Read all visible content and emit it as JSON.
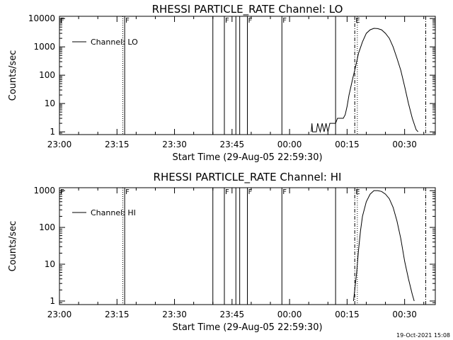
{
  "chart_data": [
    {
      "type": "line",
      "title": "RHESSI PARTICLE_RATE Channel: LO",
      "xlabel": "Start Time (29-Aug-05 22:59:30)",
      "ylabel": "Counts/sec",
      "xlim": [
        "23:00",
        "00:38"
      ],
      "ylim": [
        0.8,
        12000
      ],
      "yscale": "log",
      "grid": false,
      "legend": "top-left",
      "x_ticks": [
        "23:00",
        "23:15",
        "23:30",
        "23:45",
        "00:00",
        "00:15",
        "00:30"
      ],
      "y_ticks": [
        "1",
        "10",
        "100",
        "1000",
        "10000"
      ],
      "y_tick_values": [
        1,
        10,
        100,
        1000,
        10000
      ],
      "series": [
        {
          "name": "Channel: LO",
          "x": [
            "23:00:30",
            "00:05:40",
            "00:05:50",
            "00:06:00",
            "00:07:00",
            "00:07:20",
            "00:08:00",
            "00:08:30",
            "00:09:00",
            "00:09:30",
            "00:10:00",
            "00:10:30",
            "00:11:00",
            "00:11:30",
            "00:12:00",
            "00:12:30",
            "00:13:00",
            "00:13:30",
            "00:14:00",
            "00:14:30",
            "00:15:00",
            "00:15:30",
            "00:16:00",
            "00:16:30",
            "00:17:00",
            "00:18:00",
            "00:19:00",
            "00:20:00",
            "00:21:00",
            "00:22:00",
            "00:23:00",
            "00:24:00",
            "00:25:00",
            "00:26:00",
            "00:27:00",
            "00:28:00",
            "00:29:00",
            "00:30:00",
            "00:31:00",
            "00:32:00",
            "00:33:00",
            "00:33:30"
          ],
          "y": [
            null,
            1,
            2,
            1,
            1,
            2,
            1,
            2,
            1,
            2,
            1,
            2,
            2,
            2,
            2,
            3,
            3,
            3,
            3,
            4,
            8,
            20,
            40,
            80,
            150,
            600,
            1500,
            3000,
            4000,
            4500,
            4400,
            4000,
            3000,
            2000,
            1000,
            400,
            150,
            40,
            10,
            3,
            1.2,
            1
          ]
        }
      ],
      "vlines": [
        {
          "x": "23:16:30",
          "style": "dotted"
        },
        {
          "x": "23:17:00",
          "style": "solid",
          "flag": "F"
        },
        {
          "x": "23:40:00",
          "style": "solid"
        },
        {
          "x": "23:43:00",
          "style": "solid",
          "flag": "F"
        },
        {
          "x": "23:46:00",
          "style": "solid"
        },
        {
          "x": "23:47:00",
          "style": "solid"
        },
        {
          "x": "23:49:00",
          "style": "solid",
          "flag": "F"
        },
        {
          "x": "23:58:00",
          "style": "solid",
          "flag": "F"
        },
        {
          "x": "00:12:00",
          "style": "solid"
        },
        {
          "x": "00:17:00",
          "style": "dashdot",
          "flag": "E"
        },
        {
          "x": "00:17:40",
          "style": "dotted"
        },
        {
          "x": "00:35:30",
          "style": "dashdot"
        }
      ],
      "edge_flag": "F"
    },
    {
      "type": "line",
      "title": "RHESSI PARTICLE_RATE Channel: HI",
      "xlabel": "Start Time (29-Aug-05 22:59:30)",
      "ylabel": "Counts/sec",
      "xlim": [
        "23:00",
        "00:38"
      ],
      "ylim": [
        0.8,
        1200
      ],
      "yscale": "log",
      "grid": false,
      "legend": "top-left",
      "x_ticks": [
        "23:00",
        "23:15",
        "23:30",
        "23:45",
        "00:00",
        "00:15",
        "00:30"
      ],
      "y_ticks": [
        "1",
        "10",
        "100",
        "1000"
      ],
      "y_tick_values": [
        1,
        10,
        100,
        1000
      ],
      "series": [
        {
          "name": "Channel: HI",
          "x": [
            "00:16:40",
            "00:17:00",
            "00:17:30",
            "00:18:00",
            "00:18:30",
            "00:19:00",
            "00:20:00",
            "00:21:00",
            "00:22:00",
            "00:23:00",
            "00:24:00",
            "00:25:00",
            "00:26:00",
            "00:27:00",
            "00:28:00",
            "00:29:00",
            "00:30:00",
            "00:31:00",
            "00:32:00",
            "00:32:30"
          ],
          "y": [
            1,
            2,
            6,
            25,
            80,
            200,
            500,
            800,
            1000,
            1000,
            950,
            800,
            600,
            350,
            150,
            50,
            12,
            4,
            1.5,
            1
          ]
        }
      ],
      "vlines": [
        {
          "x": "23:16:30",
          "style": "dotted"
        },
        {
          "x": "23:17:00",
          "style": "solid",
          "flag": "F"
        },
        {
          "x": "23:40:00",
          "style": "solid"
        },
        {
          "x": "23:43:00",
          "style": "solid",
          "flag": "F"
        },
        {
          "x": "23:46:00",
          "style": "solid"
        },
        {
          "x": "23:47:00",
          "style": "solid"
        },
        {
          "x": "23:49:00",
          "style": "solid",
          "flag": "F"
        },
        {
          "x": "23:58:00",
          "style": "solid",
          "flag": "F"
        },
        {
          "x": "00:12:00",
          "style": "solid"
        },
        {
          "x": "00:17:00",
          "style": "dashdot",
          "flag": "E"
        },
        {
          "x": "00:17:40",
          "style": "dotted"
        },
        {
          "x": "00:35:30",
          "style": "dashdot"
        }
      ],
      "edge_flag": "F"
    }
  ],
  "footer": {
    "timestamp": "19-Oct-2021 15:08"
  },
  "colors": {
    "ink": "#000000",
    "background": "#ffffff"
  }
}
